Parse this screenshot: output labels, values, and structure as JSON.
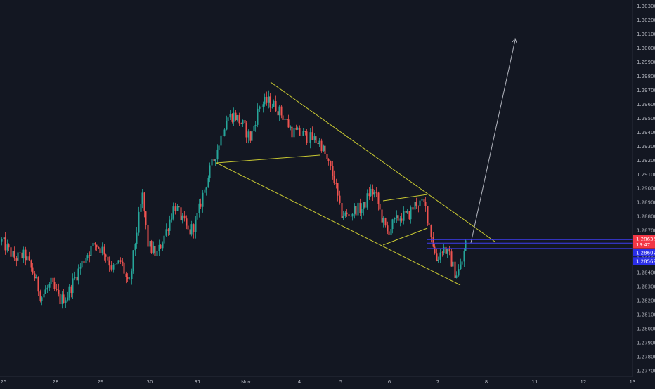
{
  "chart_data": {
    "type": "candlestick",
    "x_ticks": [
      "25",
      "28",
      "29",
      "30",
      "31",
      "Nov",
      "4",
      "5",
      "6",
      "7",
      "8",
      "11",
      "12",
      "13"
    ],
    "y_ticks": [
      "1.30300",
      "1.30200",
      "1.30100",
      "1.30000",
      "1.29900",
      "1.29800",
      "1.29700",
      "1.29600",
      "1.29500",
      "1.29400",
      "1.29300",
      "1.29200",
      "1.29100",
      "1.29000",
      "1.28900",
      "1.28800",
      "1.28700",
      "1.28600",
      "1.28500",
      "1.28400",
      "1.28300",
      "1.28200",
      "1.28100",
      "1.28000",
      "1.27900",
      "1.27800",
      "1.27700"
    ],
    "ylim": [
      1.2766,
      1.3035
    ],
    "grid": false,
    "price_labels": [
      {
        "text": "1.28635",
        "price": 1.28635,
        "color": "#f23645"
      },
      {
        "text": "19:47",
        "price": 1.28595,
        "color": "#f23645"
      },
      {
        "text": "1.28607",
        "price": 1.28537,
        "color": "#2a2ee8"
      },
      {
        "text": "1.28569",
        "price": 1.28477,
        "color": "#2a2ee8"
      }
    ],
    "horizontal_lines": [
      {
        "price": 1.28632,
        "color": "#3d3df0"
      },
      {
        "price": 1.28607,
        "color": "#3d3df0"
      },
      {
        "price": 1.28569,
        "color": "#3d3df0"
      }
    ],
    "colors": {
      "background": "#131722",
      "up": "#26a69a",
      "down": "#ef5350",
      "trendline": "#c8c832",
      "arrow": "#b2b5be",
      "axis_text": "#b2b5be"
    }
  }
}
